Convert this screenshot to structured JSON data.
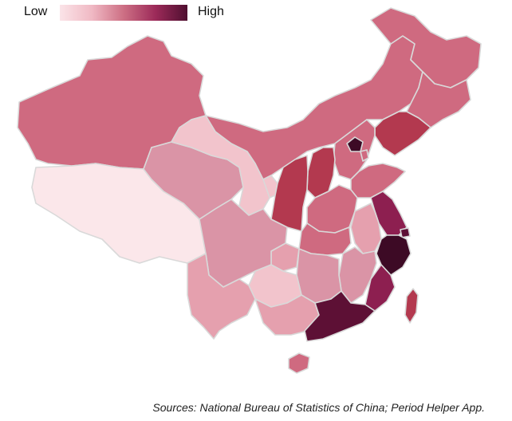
{
  "legend": {
    "low_label": "Low",
    "high_label": "High",
    "colors": [
      "#fbe4e8",
      "#f0b9c4",
      "#cd6f84",
      "#9c2a59",
      "#4f0f30"
    ]
  },
  "source_note": "Sources: National Bureau of Statistics of China; Period Helper App.",
  "colors": {
    "level_1": "#fbe7ea",
    "level_2": "#f2c4cc",
    "level_3": "#e5a0ae",
    "level_4": "#da94a6",
    "level_5": "#cf6a80",
    "level_6": "#b3394f",
    "level_7": "#8d1f50",
    "level_8": "#5d1035",
    "level_9": "#3d0a25"
  }
}
